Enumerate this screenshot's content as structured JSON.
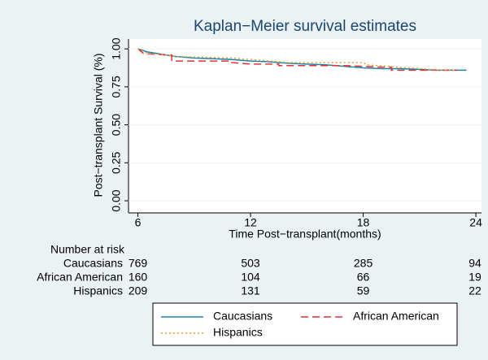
{
  "chart_data": {
    "type": "line",
    "title": "Kaplan−Meier survival estimates",
    "x_label": "Time Post−transplant(months)",
    "y_label": "Post−transplant Survival (%)",
    "xlim": [
      5.5,
      24.3
    ],
    "ylim": [
      -0.08,
      1.065
    ],
    "xticks": [
      6,
      12,
      18,
      24
    ],
    "yticks": [
      {
        "value": 0,
        "label": "0.00"
      },
      {
        "value": 0.25,
        "label": "0.25"
      },
      {
        "value": 0.5,
        "label": "0.50"
      },
      {
        "value": 0.75,
        "label": "0.75"
      },
      {
        "value": 1,
        "label": "1.00"
      }
    ],
    "grid": true,
    "series": [
      {
        "name": "Caucasians",
        "color": "#1f82a8",
        "dash": "solid",
        "x": [
          6,
          6.5,
          7,
          8,
          9,
          10,
          11,
          12,
          13,
          14,
          15,
          16,
          17,
          18,
          19,
          20,
          21,
          22,
          23.5
        ],
        "values": [
          1,
          0.98,
          0.97,
          0.95,
          0.94,
          0.935,
          0.93,
          0.92,
          0.915,
          0.905,
          0.9,
          0.895,
          0.885,
          0.875,
          0.87,
          0.87,
          0.865,
          0.86,
          0.86
        ]
      },
      {
        "name": "African American",
        "color": "#e0303a",
        "dash": "dashed",
        "x": [
          6,
          6.3,
          7.5,
          7.8,
          7.8,
          11,
          11,
          12,
          13.5,
          13.5,
          17,
          18,
          19,
          19.5,
          19.5,
          21,
          23
        ],
        "values": [
          1,
          0.97,
          0.96,
          0.96,
          0.92,
          0.92,
          0.91,
          0.9,
          0.9,
          0.89,
          0.89,
          0.885,
          0.88,
          0.88,
          0.86,
          0.86,
          0.86
        ]
      },
      {
        "name": "Hispanics",
        "color": "#e8a030",
        "dash": "dotted",
        "x": [
          6,
          6.5,
          7.5,
          8,
          11,
          12,
          14,
          18,
          18.2,
          21,
          22,
          23
        ],
        "values": [
          1,
          0.97,
          0.96,
          0.95,
          0.94,
          0.93,
          0.91,
          0.91,
          0.895,
          0.87,
          0.86,
          0.86
        ]
      }
    ],
    "risk_table": {
      "title": "Number at risk",
      "x": [
        6,
        12,
        18,
        24
      ],
      "rows": [
        {
          "name": "Caucasians",
          "values": [
            769,
            503,
            285,
            94
          ]
        },
        {
          "name": "African American",
          "values": [
            160,
            104,
            66,
            19
          ]
        },
        {
          "name": "Hispanics",
          "values": [
            209,
            131,
            59,
            22
          ]
        }
      ]
    }
  }
}
